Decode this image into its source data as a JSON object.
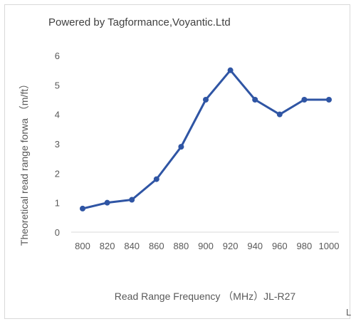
{
  "chart_data": {
    "type": "line",
    "title": "Powered by Tagformance,Voyantic.Ltd",
    "xlabel": "Read Range  Frequency  （MHz）JL-R27",
    "ylabel": "Theoretical read range forwa （m/ft）",
    "categories": [
      "800",
      "820",
      "840",
      "860",
      "880",
      "900",
      "920",
      "940",
      "960",
      "980",
      "1000"
    ],
    "series": [
      {
        "values": [
          0.8,
          1.0,
          1.1,
          1.8,
          2.9,
          4.5,
          5.5,
          4.5,
          4.0,
          4.5,
          4.5
        ]
      }
    ],
    "yticks": [
      "0",
      "1",
      "2",
      "3",
      "4",
      "5",
      "6"
    ],
    "ylim": [
      0,
      6
    ],
    "grid": false,
    "color": "#2f55a4"
  },
  "page": {
    "corner_mark": "L"
  }
}
